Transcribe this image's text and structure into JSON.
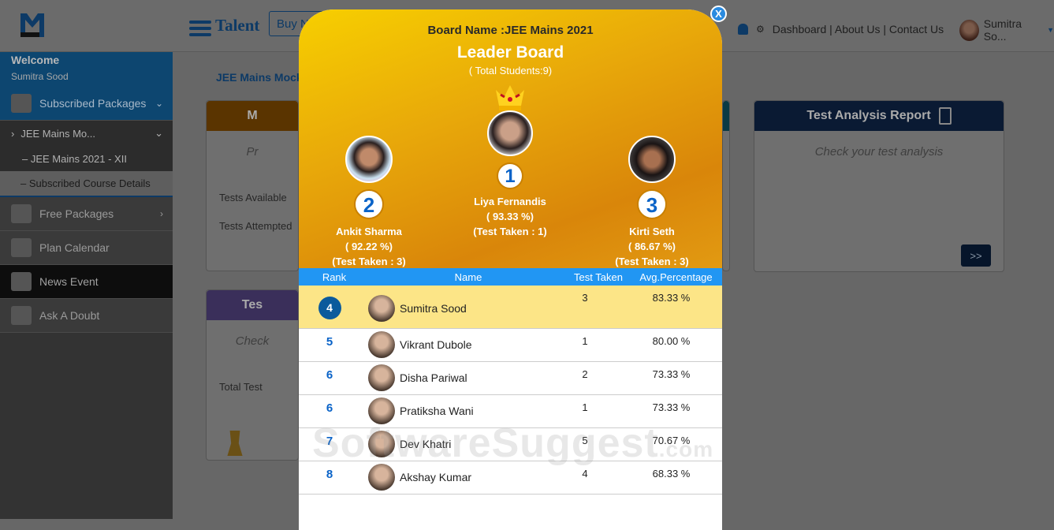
{
  "header": {
    "brand": "Talent",
    "buy_button": "Buy Now",
    "links": "Dashboard | About Us | Contact Us",
    "user_name": "Sumitra So..."
  },
  "sidebar": {
    "welcome": "Welcome",
    "user": "Sumitra Sood",
    "items": [
      {
        "label": "Subscribed Packages"
      },
      {
        "label": "JEE Mains Mo..."
      },
      {
        "label": "– JEE Mains 2021 - XII"
      },
      {
        "label": "– Subscribed Course Details"
      },
      {
        "label": "Free Packages"
      },
      {
        "label": "Plan Calendar"
      },
      {
        "label": "News Event"
      },
      {
        "label": "Ask A Doubt"
      }
    ]
  },
  "main": {
    "breadcrumb": "JEE Mains Mock",
    "card1": {
      "title": "M",
      "subtitle": "Pr",
      "tests_available": "Tests Available",
      "tests_attempted": "Tests Attempted"
    },
    "card2": {
      "title": "Tes",
      "subtitle": "Check",
      "total_test": "Total Test"
    },
    "analysis": {
      "title": "Test Analysis Report",
      "subtitle": "Check your test analysis",
      "go": ">>"
    }
  },
  "modal": {
    "close": "X",
    "board_name": "Board Name :JEE Mains 2021",
    "title": "Leader Board",
    "total": "( Total Students:9)",
    "podium": [
      {
        "rank": "1",
        "name": "Liya Fernandis",
        "pct": "( 93.33 %)",
        "taken": "(Test Taken : 1)"
      },
      {
        "rank": "2",
        "name": "Ankit Sharma",
        "pct": "( 92.22 %)",
        "taken": "(Test Taken : 3)"
      },
      {
        "rank": "3",
        "name": "Kirti Seth",
        "pct": "( 86.67 %)",
        "taken": "(Test Taken : 3)"
      }
    ],
    "columns": [
      "Rank",
      "Name",
      "Test Taken",
      "Avg.Percentage"
    ],
    "rows": [
      {
        "rank": "4",
        "name": "Sumitra Sood",
        "taken": "3",
        "pct": "83.33 %",
        "current": true
      },
      {
        "rank": "5",
        "name": "Vikrant Dubole",
        "taken": "1",
        "pct": "80.00 %"
      },
      {
        "rank": "6",
        "name": "Disha Pariwal",
        "taken": "2",
        "pct": "73.33 %"
      },
      {
        "rank": "6",
        "name": "Pratiksha Wani",
        "taken": "1",
        "pct": "73.33 %"
      },
      {
        "rank": "7",
        "name": "Dev Khatri",
        "taken": "5",
        "pct": "70.67 %"
      },
      {
        "rank": "8",
        "name": "Akshay Kumar",
        "taken": "4",
        "pct": "68.33 %"
      }
    ]
  },
  "watermark": {
    "text": "SoftwareSuggest",
    ".com": ".com"
  },
  "colors": {
    "primary": "#0b5a9c",
    "table_header": "#2196f3",
    "highlight": "#fce587",
    "gold": "#f7cf00",
    "orange": "#d9860a"
  }
}
